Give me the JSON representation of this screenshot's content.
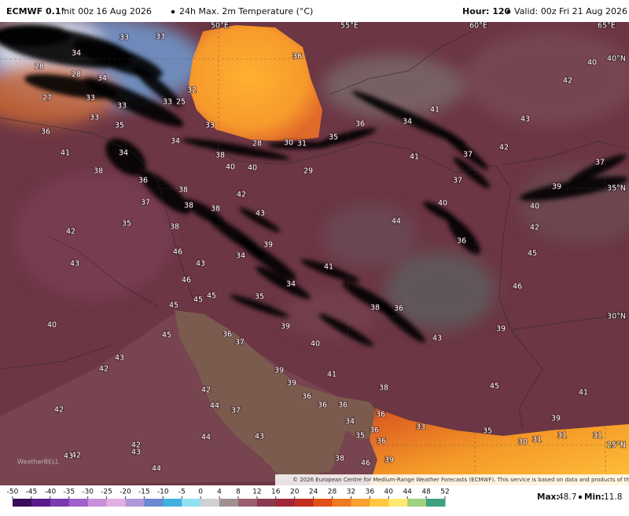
{
  "header": {
    "model": "ECMWF 0.1°",
    "init": "Init 00z 16 Aug 2026",
    "product": "24h Max. 2m Temperature (°C)",
    "hour": "Hour: 120",
    "valid": "Valid: 00z Fri 21 Aug 2026"
  },
  "map": {
    "grid_labels": [
      "50°E",
      "55°E",
      "60°E",
      "65°E",
      "40°N",
      "35°N",
      "30°N",
      "25°N"
    ],
    "values": [
      33,
      33,
      34,
      28,
      28,
      34,
      27,
      33,
      33,
      33,
      32,
      25,
      33,
      35,
      33,
      36,
      40,
      42,
      41,
      36,
      34,
      43,
      36,
      41,
      34,
      34,
      38,
      28,
      30,
      31,
      35,
      41,
      37,
      42,
      37,
      40,
      40,
      29,
      38,
      36,
      38,
      42,
      37,
      38,
      38,
      43,
      40,
      39,
      37,
      35,
      38,
      44,
      40,
      42,
      42,
      39,
      36,
      45,
      46,
      43,
      34,
      43,
      41,
      46,
      34,
      46,
      45,
      45,
      45,
      35,
      38,
      36,
      40,
      45,
      36,
      37,
      39,
      40,
      43,
      39,
      43,
      42,
      39,
      41,
      39,
      38,
      45,
      42,
      41,
      44,
      37,
      36,
      36,
      36,
      36,
      34,
      42,
      39,
      33,
      35,
      44,
      43,
      35,
      36,
      36,
      42,
      43,
      42,
      43,
      38,
      39,
      46,
      44,
      31,
      31,
      31,
      30
    ],
    "logo": "WeatherBELL",
    "credit": "© 2026 European Centre for Medium-Range Weather Forecasts (ECMWF). This service is based on data and products of the ECMWF."
  },
  "colorbar": {
    "ticks": [
      -50,
      -45,
      -40,
      -35,
      -30,
      -25,
      -20,
      -15,
      -10,
      -5,
      0,
      4,
      8,
      12,
      16,
      20,
      24,
      28,
      32,
      36,
      40,
      44,
      48,
      52
    ]
  },
  "stats": {
    "max_label": "Max:",
    "max": 48.7,
    "min_label": "Min:",
    "min": 11.8
  }
}
